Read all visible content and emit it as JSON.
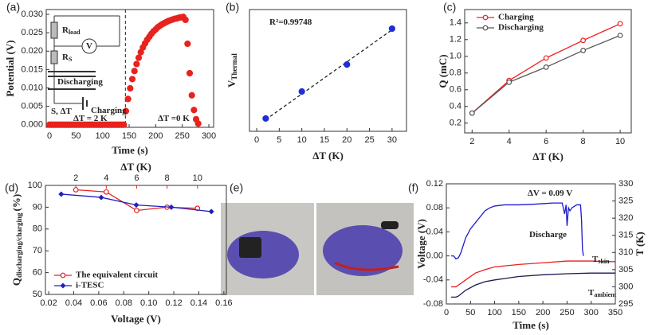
{
  "chart_data": [
    {
      "type": "scatter",
      "label": "(a)",
      "xlabel": "Time (s)",
      "ylabel": [
        "Potential (V)"
      ],
      "x": [
        0,
        4,
        8,
        12,
        16,
        20,
        24,
        28,
        32,
        36,
        40,
        44,
        48,
        52,
        56,
        60,
        64,
        68,
        72,
        76,
        80,
        84,
        88,
        92,
        96,
        100,
        104,
        108,
        112,
        116,
        120,
        124,
        128,
        132,
        136,
        140,
        144,
        148,
        152,
        156,
        160,
        164,
        168,
        172,
        176,
        180,
        184,
        188,
        192,
        196,
        200,
        204,
        208,
        212,
        216,
        220,
        224,
        228,
        232,
        236,
        240,
        244,
        248,
        252,
        256,
        260,
        264,
        268,
        272,
        276,
        280
      ],
      "series": [
        {
          "name": "Potential",
          "color": "#e8231e",
          "marker": "circle",
          "values": [
            0,
            0,
            0,
            0,
            0,
            0,
            0,
            0,
            0,
            0,
            0,
            0,
            0,
            0,
            0,
            0,
            0,
            0,
            0,
            0,
            0,
            0,
            0,
            0,
            0,
            0,
            0,
            0,
            0,
            0,
            0,
            0,
            0,
            0,
            0,
            0,
            0.0037,
            0.007,
            0.0099,
            0.0124,
            0.0146,
            0.0165,
            0.0182,
            0.0197,
            0.021,
            0.0221,
            0.0231,
            0.0239,
            0.0247,
            0.0254,
            0.0259,
            0.0265,
            0.0269,
            0.0273,
            0.0276,
            0.0279,
            0.0282,
            0.0284,
            0.0286,
            0.0288,
            0.0289,
            0.0291,
            0.0292,
            0.0293,
            0.0285,
            0.022,
            0.014,
            0.008,
            0.004,
            0.0015,
            0.0003
          ]
        }
      ],
      "xlim": [
        -6,
        309
      ],
      "xticks": [
        0,
        50,
        100,
        150,
        200,
        250,
        300
      ],
      "ylim": [
        -0.0007,
        0.0313
      ],
      "yticks": [
        {
          "value": 0,
          "label": "0.000"
        },
        {
          "value": 0.005,
          "label": "0.005"
        },
        {
          "value": 0.01,
          "label": "0.010"
        },
        {
          "value": 0.015,
          "label": "0.015"
        },
        {
          "value": 0.02,
          "label": "0.020"
        },
        {
          "value": 0.025,
          "label": "0.025"
        },
        {
          "value": 0.03,
          "label": "0.030"
        }
      ],
      "vline": 143,
      "annotations": [
        {
          "text": "R",
          "sub": "load"
        },
        {
          "text": "V"
        },
        {
          "text": "R",
          "sub": "S"
        },
        {
          "text": "Discharging"
        },
        {
          "text": "S, ΔT"
        },
        {
          "text": "Charging"
        },
        {
          "text": "ΔT = 2 K"
        },
        {
          "text": "ΔT =0 K"
        }
      ]
    },
    {
      "type": "scatter",
      "label": "(b)",
      "xlabel": "ΔT (K)",
      "ylabel": [
        "V",
        "Thermal"
      ],
      "x": [
        2,
        10,
        20,
        30
      ],
      "series": [
        {
          "name": "VThermal",
          "color": "#1f2ed6",
          "marker": "circle",
          "values": [
            0.03,
            0.15,
            0.27,
            0.43
          ]
        }
      ],
      "fit": {
        "x": [
          2,
          30
        ],
        "values": [
          0.025,
          0.425
        ]
      },
      "xlim": [
        -1.6,
        33.2
      ],
      "xticks": [
        0,
        5,
        10,
        15,
        20,
        25,
        30
      ],
      "ylim": [
        -0.027,
        0.515
      ],
      "yticks": [],
      "annotations": [
        {
          "text": "R²=0.99748"
        }
      ]
    },
    {
      "type": "line",
      "label": "(c)",
      "xlabel": "ΔT (K)",
      "ylabel": [
        "Q (mC)"
      ],
      "x": [
        2,
        4,
        6,
        8,
        10
      ],
      "series": [
        {
          "name": "Charging",
          "color": "#f02020",
          "marker": "open",
          "values": [
            0.32,
            0.71,
            0.98,
            1.19,
            1.39
          ]
        },
        {
          "name": "Discharging",
          "color": "#555555",
          "marker": "open",
          "values": [
            0.32,
            0.69,
            0.87,
            1.07,
            1.25
          ]
        }
      ],
      "xlim": [
        1.6,
        10.6
      ],
      "xticks": [
        2,
        4,
        6,
        8,
        10
      ],
      "ylim": [
        0.083,
        1.56
      ],
      "yticks": [
        0.2,
        0.4,
        0.6,
        0.8,
        {
          "value": 1,
          "label": "1.0"
        },
        1.2,
        1.4
      ],
      "legend": "upper left",
      "annotations": []
    },
    {
      "type": "line",
      "label": "(d)",
      "xlabel": "Voltage (V)",
      "x2label": "ΔT (K)",
      "ylabel": [
        "Q",
        "discharging/charging",
        "(%)"
      ],
      "series": [
        {
          "name": "The equivalent circuit",
          "color": "#e82020",
          "marker": "open",
          "axis": "x2",
          "x": [
            2,
            4,
            6,
            8,
            10
          ],
          "values": [
            98,
            97,
            88.5,
            90,
            89.5
          ]
        },
        {
          "name": "i-TESC",
          "color": "#2020c0",
          "marker": "diamond",
          "x": [
            0.03,
            0.062,
            0.09,
            0.118,
            0.15
          ],
          "values": [
            96,
            94.5,
            91,
            90,
            88
          ]
        }
      ],
      "xlim": [
        0.0174,
        0.162
      ],
      "xticks": [
        0.02,
        0.04,
        0.06,
        0.08,
        {
          "value": 0.1,
          "label": "0.10"
        },
        0.12,
        0.14,
        0.16
      ],
      "x2lim": [
        0,
        11.9
      ],
      "x2ticks": [
        2,
        4,
        6,
        8,
        10
      ],
      "ylim": [
        50,
        100
      ],
      "yticks": [
        50,
        60,
        70,
        80,
        90,
        100
      ],
      "axis_color": {
        "x": "#2020c0",
        "x2": "#e82020"
      },
      "legend": "lower left",
      "annotations": []
    },
    {
      "type": "line",
      "label": "(f)",
      "xlabel": "Time (s)",
      "ylabel": [
        "Voltage (V)"
      ],
      "y2label": [
        "T (K)"
      ],
      "series": [
        {
          "name": "Voltage",
          "color": "#1a1ad0",
          "x": [
            10,
            15,
            20,
            25,
            30,
            40,
            50,
            60,
            70,
            80,
            90,
            100,
            120,
            150,
            180,
            200,
            220,
            240,
            245,
            248,
            250,
            253,
            256,
            260,
            270,
            278,
            280,
            282,
            284
          ],
          "values": [
            0,
            0,
            -0.005,
            -0.003,
            0.005,
            0.03,
            0.045,
            0.055,
            0.065,
            0.075,
            0.08,
            0.083,
            0.085,
            0.085,
            0.086,
            0.087,
            0.088,
            0.088,
            0.07,
            0.085,
            0.05,
            0.08,
            0.075,
            0.08,
            0.085,
            0.085,
            0.06,
            0.01,
            0
          ]
        },
        {
          "name": "Tskin",
          "color": "#e82020",
          "axis": "y2",
          "x": [
            10,
            20,
            25,
            40,
            60,
            80,
            100,
            150,
            200,
            250,
            300,
            350
          ],
          "values": [
            300,
            300,
            300.5,
            302,
            304,
            305,
            305.8,
            306.5,
            307,
            307.5,
            307.5,
            307.3
          ]
        },
        {
          "name": "Tambient",
          "color": "#1a1a50",
          "axis": "y2",
          "x": [
            10,
            20,
            25,
            40,
            60,
            80,
            100,
            150,
            200,
            250,
            300,
            350
          ],
          "values": [
            297,
            297,
            297.3,
            299,
            300.5,
            301.5,
            302,
            303,
            303.5,
            303.8,
            304,
            304
          ]
        }
      ],
      "xlim": [
        0,
        350
      ],
      "xticks": [
        0,
        50,
        100,
        150,
        200,
        250,
        300,
        350
      ],
      "ylim": [
        -0.08,
        0.12
      ],
      "yticks": [
        -0.08,
        -0.04,
        {
          "value": 0,
          "label": "0.00"
        },
        0.04,
        0.08,
        0.12
      ],
      "y2lim": [
        295,
        330
      ],
      "y2ticks": [
        295,
        300,
        305,
        310,
        315,
        320,
        325,
        330
      ],
      "axis_color": {
        "y": "#1a1ad0",
        "y2": "#e82020"
      },
      "annotations": [
        {
          "text": "ΔV = 0.09 V"
        },
        {
          "text": "Discharge"
        },
        {
          "text": "T",
          "sub": "skin"
        },
        {
          "text": "T",
          "sub": "ambient"
        }
      ]
    }
  ],
  "panel_e": {
    "label": "(e)"
  }
}
